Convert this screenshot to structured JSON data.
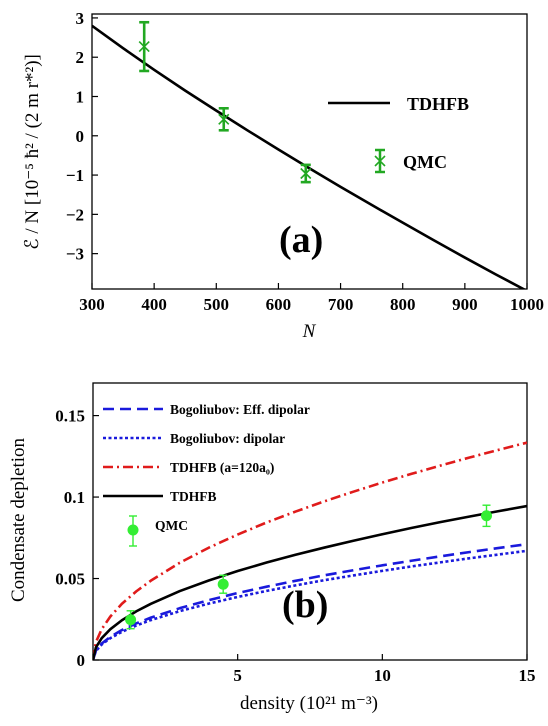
{
  "chart_data": [
    {
      "panel": "(a)",
      "type": "line",
      "xlabel": "N",
      "ylabel": "ℰ / N [10⁻⁵ ħ² / (2 m r*²)]",
      "xlim": [
        300,
        1000
      ],
      "ylim": [
        -3.9,
        3.1
      ],
      "x_ticks": [
        300,
        400,
        500,
        600,
        700,
        800,
        900,
        1000
      ],
      "y_ticks": [
        -3,
        -2,
        -1,
        0,
        1,
        2,
        3
      ],
      "x_tick_labels": [
        "300",
        "400",
        "500",
        "600",
        "700",
        "800",
        "900",
        "1000"
      ],
      "y_tick_labels": [
        "−3",
        "−2",
        "−1",
        "0",
        "1",
        "2",
        "3"
      ],
      "grid": false,
      "legend_position": "right",
      "series": [
        {
          "name": "TDHFB",
          "kind": "line",
          "color": "#000000",
          "x": [
            300,
            350,
            400,
            450,
            500,
            550,
            600,
            650,
            700,
            750,
            800,
            850,
            900,
            950,
            1000
          ],
          "y": [
            2.8,
            2.23,
            1.68,
            1.15,
            0.64,
            0.14,
            -0.35,
            -0.83,
            -1.3,
            -1.76,
            -2.21,
            -2.66,
            -3.1,
            -3.53,
            -3.95
          ]
        },
        {
          "name": "QMC",
          "kind": "errorbar",
          "color": "#22a822",
          "marker": "x",
          "x": [
            384,
            512,
            644
          ],
          "y": [
            2.27,
            0.42,
            -0.96
          ],
          "err": [
            0.62,
            0.28,
            0.22
          ]
        }
      ]
    },
    {
      "panel": "(b)",
      "type": "line",
      "xlabel": "density (10²¹ m⁻³)",
      "ylabel": "Condensate depletion",
      "xlim": [
        0,
        15
      ],
      "ylim": [
        0,
        0.17
      ],
      "x_ticks": [
        0,
        5,
        10,
        15
      ],
      "y_ticks": [
        0,
        0.05,
        0.1,
        0.15
      ],
      "x_tick_labels": [
        "",
        "5",
        "10",
        "15"
      ],
      "y_tick_labels": [
        "0",
        "0.05",
        "0.1",
        "0.15"
      ],
      "grid": false,
      "legend_position": "top-left",
      "series": [
        {
          "name": "Bogoliubov: Eff. dipolar",
          "kind": "line",
          "style": "dashed",
          "color": "#1a1adc",
          "x": [
            0,
            0.1,
            0.3,
            0.6,
            1,
            1.5,
            2,
            3,
            4,
            5,
            6,
            7,
            8,
            9,
            10,
            11,
            12,
            13,
            14,
            15
          ],
          "y": [
            0,
            0.0058,
            0.0101,
            0.0142,
            0.0184,
            0.0225,
            0.026,
            0.0318,
            0.0367,
            0.0411,
            0.045,
            0.0486,
            0.052,
            0.0551,
            0.0581,
            0.0609,
            0.0636,
            0.0662,
            0.0687,
            0.0711
          ]
        },
        {
          "name": "Bogoliubov: dipolar",
          "kind": "line",
          "style": "dotted",
          "color": "#1a1adc",
          "x": [
            0,
            0.1,
            0.3,
            0.6,
            1,
            1.5,
            2,
            3,
            4,
            5,
            6,
            7,
            8,
            9,
            10,
            11,
            12,
            13,
            14,
            15
          ],
          "y": [
            0,
            0.0055,
            0.0095,
            0.0134,
            0.0173,
            0.0212,
            0.0245,
            0.03,
            0.0346,
            0.0387,
            0.0424,
            0.0458,
            0.049,
            0.0519,
            0.0547,
            0.0574,
            0.0599,
            0.0624,
            0.0647,
            0.067
          ]
        },
        {
          "name": "TDHFB (a=120a₀)",
          "kind": "line",
          "style": "dashdot",
          "color": "#e01b1b",
          "x": [
            0,
            0.1,
            0.3,
            0.6,
            1,
            1.5,
            2,
            3,
            4,
            5,
            6,
            7,
            8,
            9,
            10,
            11,
            12,
            13,
            14,
            15
          ],
          "y": [
            0,
            0.0109,
            0.0189,
            0.0267,
            0.0345,
            0.0422,
            0.0487,
            0.0597,
            0.0689,
            0.077,
            0.0844,
            0.0911,
            0.0974,
            0.1033,
            0.1089,
            0.1142,
            0.1193,
            0.1242,
            0.1289,
            0.1334
          ]
        },
        {
          "name": "TDHFB",
          "kind": "line",
          "style": "solid",
          "color": "#000000",
          "x": [
            0,
            0.1,
            0.3,
            0.6,
            1,
            1.5,
            2,
            3,
            4,
            5,
            6,
            7,
            8,
            9,
            10,
            11,
            12,
            13,
            14,
            15
          ],
          "y": [
            0,
            0.0077,
            0.0134,
            0.0189,
            0.0244,
            0.0299,
            0.0345,
            0.0423,
            0.0488,
            0.0546,
            0.0598,
            0.0646,
            0.069,
            0.0732,
            0.0772,
            0.081,
            0.0846,
            0.088,
            0.0913,
            0.0945
          ]
        },
        {
          "name": "QMC",
          "kind": "errorbar",
          "marker": "o",
          "color": "#33ee33",
          "x": [
            1.3,
            4.5,
            13.6
          ],
          "y": [
            0.0247,
            0.0465,
            0.0885
          ],
          "err": [
            0.0055,
            0.0055,
            0.0065
          ]
        }
      ]
    }
  ]
}
